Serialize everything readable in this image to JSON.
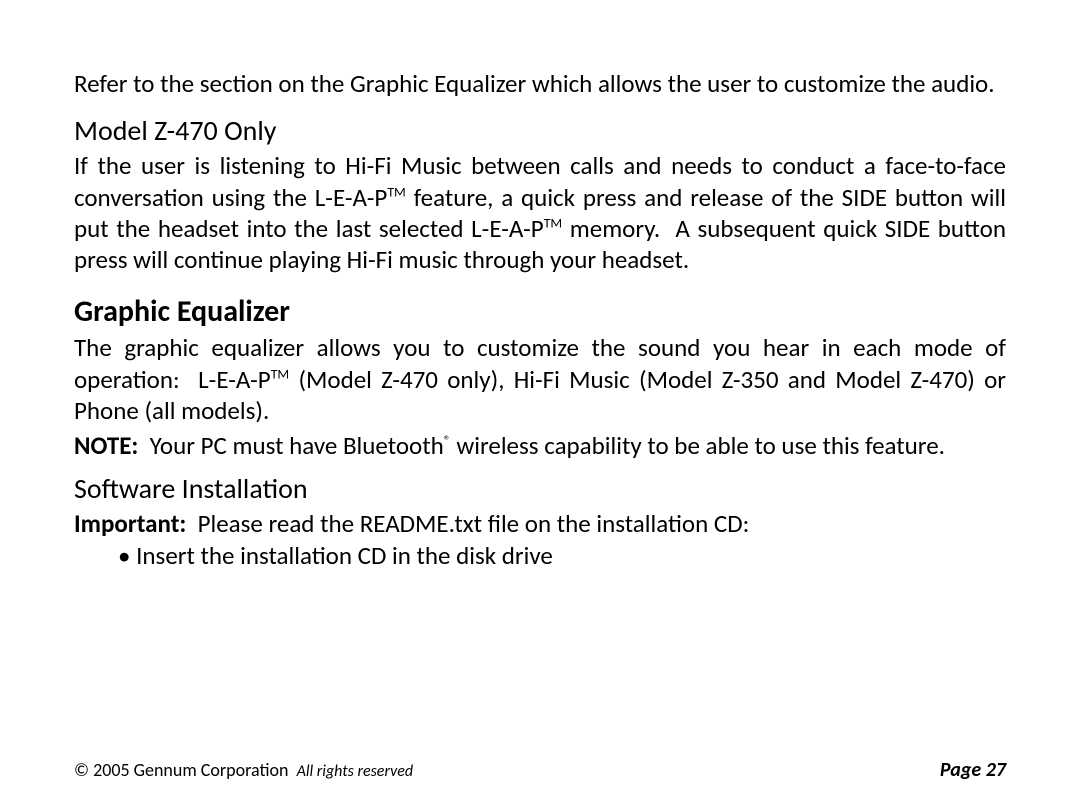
{
  "intro": "Refer to the section on the Graphic Equalizer which allows the user to customize the audio.",
  "section1": {
    "heading": "Model Z-470 Only",
    "body_html": "If the user is listening to Hi-Fi Music between calls and needs to conduct a face-to-face conversation using the L-E-A-P<sup>TM</sup> feature, a quick press and release of the SIDE button will put the headset into the last selected L-E-A-P<sup>TM</sup> memory.&nbsp; A subsequent quick SIDE button press will continue playing Hi-Fi music through your headset."
  },
  "section2": {
    "heading": "Graphic Equalizer",
    "body_html": "The graphic equalizer allows you to customize the sound you hear in each mode of operation:&nbsp; L-E-A-P<sup>TM</sup> (Model Z-470 only), Hi-Fi Music (Model Z-350 and Model Z-470) or Phone (all models).",
    "note_html": "<b>NOTE:</b>&nbsp; Your PC must have Bluetooth<sup>®</sup> wireless capability to be able to use this feature."
  },
  "section3": {
    "heading": "Software Installation",
    "important_html": "<b>Important:</b>&nbsp; Please read the README.txt file on the installation CD:",
    "bullet": "•  Insert the installation CD in the disk drive"
  },
  "footer": {
    "copyright": "© 2005 Gennum Corporation",
    "rights": "All rights reserved",
    "page": "Page 27"
  }
}
